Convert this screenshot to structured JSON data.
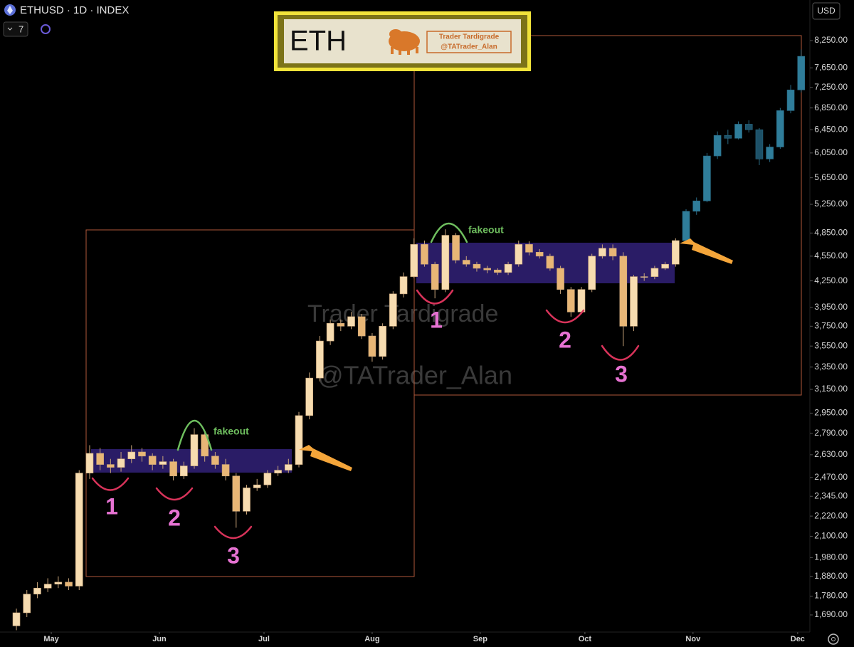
{
  "header": {
    "symbol": "ETHUSD · 1D · INDEX",
    "indicator_count": "7",
    "currency": "USD"
  },
  "logo": {
    "ticker": "ETH",
    "name": "Trader Tardigrade",
    "handle": "@TATrader_Alan"
  },
  "watermark": {
    "name": "Trader Tardigrade",
    "handle": "@TATrader_Alan"
  },
  "chart_data": {
    "type": "candlestick",
    "log_scale": true,
    "ylim": [
      1612,
      9228
    ],
    "yticks": [
      {
        "value": 8250,
        "label": "8,250.00"
      },
      {
        "value": 7650,
        "label": "7,650.00"
      },
      {
        "value": 7250,
        "label": "7,250.00"
      },
      {
        "value": 6850,
        "label": "6,850.00"
      },
      {
        "value": 6450,
        "label": "6,450.00"
      },
      {
        "value": 6050,
        "label": "6,050.00"
      },
      {
        "value": 5650,
        "label": "5,650.00"
      },
      {
        "value": 5250,
        "label": "5,250.00"
      },
      {
        "value": 4850,
        "label": "4,850.00"
      },
      {
        "value": 4550,
        "label": "4,550.00"
      },
      {
        "value": 4250,
        "label": "4,250.00"
      },
      {
        "value": 3950,
        "label": "3,950.00"
      },
      {
        "value": 3750,
        "label": "3,750.00"
      },
      {
        "value": 3550,
        "label": "3,550.00"
      },
      {
        "value": 3350,
        "label": "3,350.00"
      },
      {
        "value": 3150,
        "label": "3,150.00"
      },
      {
        "value": 2950,
        "label": "2,950.00"
      },
      {
        "value": 2790,
        "label": "2,790.00"
      },
      {
        "value": 2630,
        "label": "2,630.00"
      },
      {
        "value": 2470,
        "label": "2,470.00"
      },
      {
        "value": 2345,
        "label": "2,345.00"
      },
      {
        "value": 2220,
        "label": "2,220.00"
      },
      {
        "value": 2100,
        "label": "2,100.00"
      },
      {
        "value": 1980,
        "label": "1,980.00"
      },
      {
        "value": 1880,
        "label": "1,880.00"
      },
      {
        "value": 1780,
        "label": "1,780.00"
      },
      {
        "value": 1690,
        "label": "1,690.00"
      }
    ],
    "xlim": [
      -4.7,
      227.5
    ],
    "xticks": [
      {
        "value": 10,
        "label": "May"
      },
      {
        "value": 41,
        "label": "Jun"
      },
      {
        "value": 71,
        "label": "Jul"
      },
      {
        "value": 102,
        "label": "Aug"
      },
      {
        "value": 133,
        "label": "Sep"
      },
      {
        "value": 163,
        "label": "Oct"
      },
      {
        "value": 194,
        "label": "Nov"
      },
      {
        "value": 224,
        "label": "Dec"
      }
    ],
    "series": [
      {
        "up_color": "#f7dcb0",
        "down_color": "#e8b676",
        "wick_color": "#c9a57a",
        "x": [
          0,
          3,
          6,
          9,
          12,
          15,
          18,
          21,
          24,
          27,
          30,
          33,
          36,
          39,
          42,
          45,
          48,
          51,
          54,
          57,
          60,
          63,
          66,
          69,
          72,
          75,
          78,
          81,
          84,
          87,
          90,
          93,
          96,
          99,
          102,
          105,
          108,
          111,
          114,
          117,
          120,
          123,
          126,
          129,
          132,
          135,
          138,
          141,
          144,
          147,
          150,
          153,
          156,
          159,
          162,
          165,
          168,
          171,
          174,
          177,
          180,
          183,
          186,
          189
        ],
        "open": [
          1640,
          1700,
          1790,
          1820,
          1840,
          1850,
          1830,
          2500,
          2640,
          2560,
          2540,
          2600,
          2650,
          2620,
          2560,
          2580,
          2480,
          2550,
          2780,
          2620,
          2560,
          2480,
          2250,
          2400,
          2420,
          2500,
          2520,
          2560,
          2930,
          3250,
          3600,
          3780,
          3750,
          3850,
          3650,
          3450,
          3750,
          4100,
          4300,
          4700,
          4450,
          4150,
          4820,
          4500,
          4450,
          4400,
          4380,
          4350,
          4450,
          4700,
          4600,
          4550,
          4400,
          4150,
          3900,
          4150,
          4550,
          4650,
          4550,
          3750,
          4300,
          4300,
          4400,
          4450
        ],
        "high": [
          1720,
          1810,
          1850,
          1870,
          1880,
          1870,
          2520,
          2700,
          2680,
          2600,
          2650,
          2700,
          2680,
          2640,
          2620,
          2600,
          2580,
          2830,
          2800,
          2650,
          2600,
          2500,
          2420,
          2460,
          2520,
          2550,
          2600,
          2960,
          3300,
          3650,
          3820,
          3820,
          3900,
          3880,
          3680,
          3780,
          4130,
          4350,
          4780,
          4750,
          4480,
          4900,
          4850,
          4550,
          4480,
          4430,
          4400,
          4480,
          4750,
          4740,
          4640,
          4580,
          4430,
          4180,
          4180,
          4580,
          4700,
          4700,
          4600,
          4320,
          4340,
          4430,
          4480,
          4780
        ],
        "low": [
          1620,
          1680,
          1770,
          1800,
          1820,
          1810,
          1810,
          2460,
          2520,
          2500,
          2510,
          2570,
          2580,
          2520,
          2530,
          2450,
          2460,
          2530,
          2580,
          2530,
          2450,
          2150,
          2230,
          2380,
          2400,
          2480,
          2500,
          2540,
          2900,
          3220,
          3560,
          3700,
          3720,
          3620,
          3400,
          3420,
          3720,
          4060,
          4280,
          4420,
          4050,
          4120,
          4460,
          4420,
          4360,
          4340,
          4320,
          4320,
          4420,
          4560,
          4520,
          4370,
          4100,
          3850,
          3880,
          4120,
          4520,
          4500,
          3550,
          3700,
          4250,
          4270,
          4380,
          4420
        ],
        "close": [
          1700,
          1790,
          1820,
          1840,
          1850,
          1830,
          2500,
          2640,
          2560,
          2540,
          2600,
          2650,
          2620,
          2560,
          2580,
          2480,
          2550,
          2780,
          2620,
          2560,
          2480,
          2250,
          2400,
          2420,
          2500,
          2520,
          2560,
          2930,
          3250,
          3600,
          3780,
          3750,
          3850,
          3650,
          3450,
          3750,
          4100,
          4300,
          4700,
          4450,
          4150,
          4820,
          4500,
          4450,
          4400,
          4380,
          4350,
          4450,
          4700,
          4600,
          4550,
          4400,
          4150,
          3900,
          4150,
          4550,
          4650,
          4550,
          3750,
          4300,
          4300,
          4400,
          4450,
          4750
        ]
      },
      {
        "up_color": "#2f7d9a",
        "down_color": "#1d5168",
        "wick_color": "#2a6a84",
        "x": [
          192,
          195,
          198,
          201,
          204,
          207,
          210,
          213,
          216,
          219,
          222,
          225
        ],
        "open": [
          4750,
          5150,
          5300,
          6000,
          6350,
          6300,
          6550,
          6450,
          5950,
          6150,
          6800,
          7200
        ],
        "high": [
          5180,
          5350,
          6050,
          6420,
          6450,
          6600,
          6620,
          6480,
          6200,
          6850,
          7300,
          8050
        ],
        "low": [
          4720,
          5100,
          5280,
          5950,
          6200,
          6280,
          6400,
          5850,
          5900,
          6120,
          6750,
          7150
        ],
        "close": [
          5150,
          5300,
          6000,
          6350,
          6300,
          6550,
          6450,
          5950,
          6150,
          6800,
          7200,
          7900
        ]
      }
    ],
    "annotations": [
      "fakeout",
      "1",
      "2",
      "3",
      "fakeout",
      "1",
      "2",
      "3"
    ]
  }
}
